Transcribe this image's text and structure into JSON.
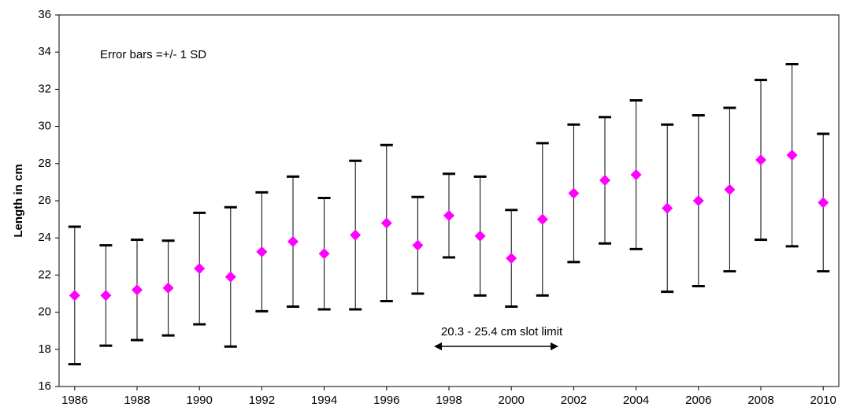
{
  "chart_data": {
    "type": "scatter",
    "ylabel": "Length in cm",
    "annotations": [
      "Error bars =+/- 1 SD",
      "20.3 - 25.4 cm slot limit"
    ],
    "x": [
      1986,
      1987,
      1988,
      1989,
      1990,
      1991,
      1992,
      1993,
      1994,
      1995,
      1996,
      1997,
      1998,
      1999,
      2000,
      2001,
      2002,
      2003,
      2004,
      2005,
      2006,
      2007,
      2008,
      2009,
      2010
    ],
    "values": [
      20.9,
      20.9,
      21.2,
      21.3,
      22.35,
      21.9,
      23.25,
      23.8,
      23.15,
      24.15,
      24.8,
      23.6,
      25.2,
      24.1,
      22.9,
      25.0,
      26.4,
      27.1,
      27.4,
      25.6,
      26.0,
      26.6,
      28.2,
      28.45,
      25.9
    ],
    "errors": [
      3.7,
      2.7,
      2.7,
      2.55,
      3.0,
      3.75,
      3.2,
      3.5,
      3.0,
      4.0,
      4.2,
      2.6,
      2.25,
      3.2,
      2.6,
      4.1,
      3.7,
      3.4,
      4.0,
      4.5,
      4.6,
      4.4,
      4.3,
      4.9,
      3.7
    ],
    "color": "#ff00ff",
    "error_color": "#000000",
    "xlim": [
      1985.5,
      2010.5
    ],
    "xticks": [
      1986,
      1988,
      1990,
      1992,
      1994,
      1996,
      1998,
      2000,
      2002,
      2004,
      2006,
      2008,
      2010
    ],
    "ylim": [
      16,
      36
    ],
    "yticks": [
      16,
      18,
      20,
      22,
      24,
      26,
      28,
      30,
      32,
      34,
      36
    ],
    "grid": false
  }
}
